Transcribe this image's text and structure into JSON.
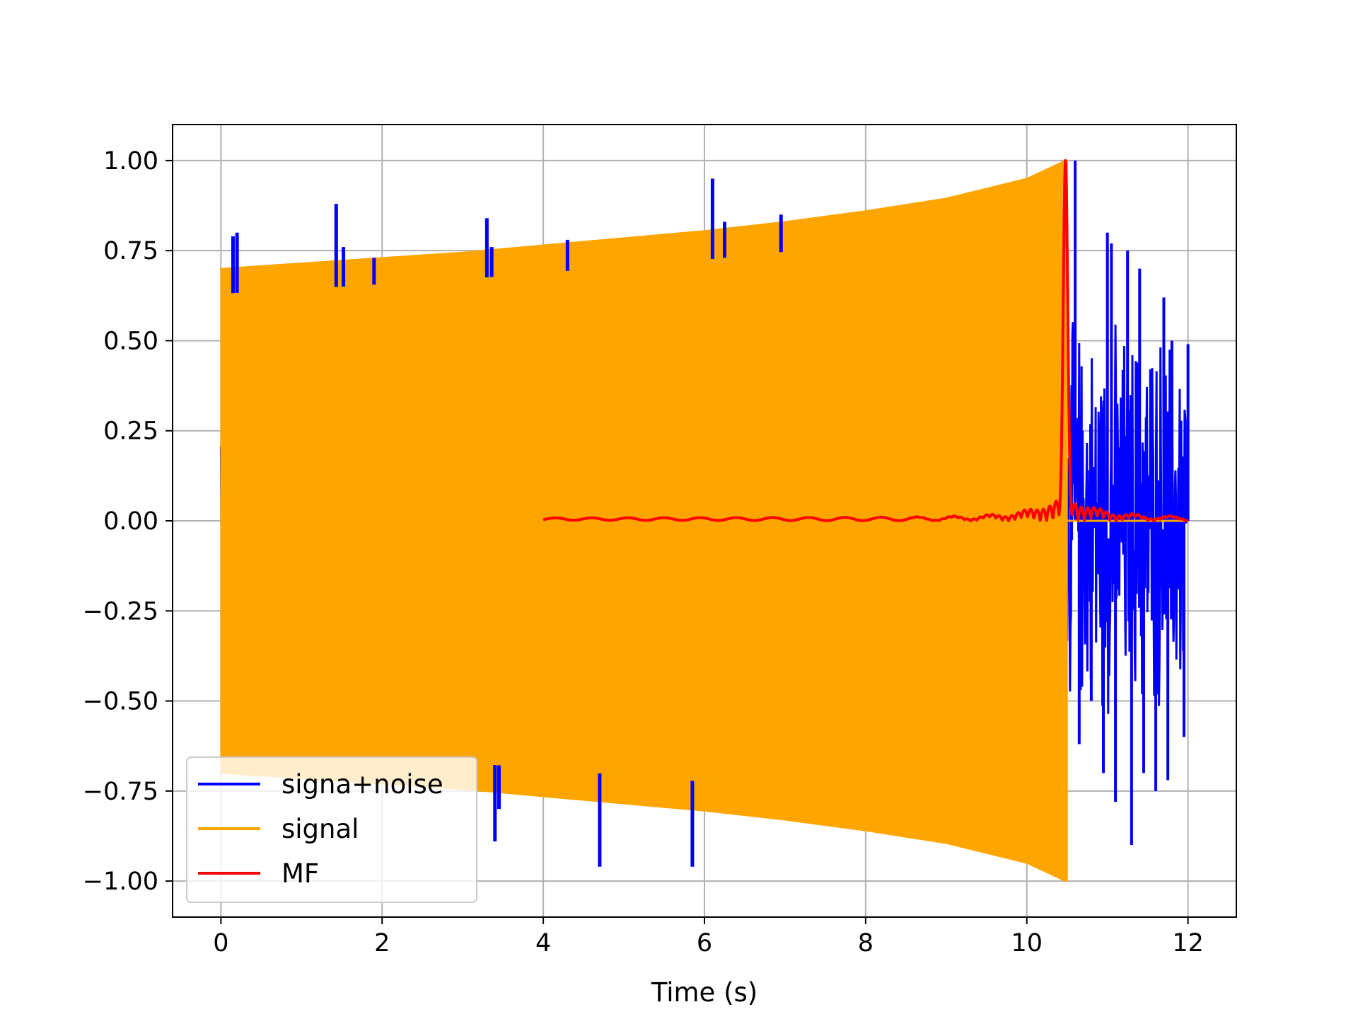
{
  "chart_data": {
    "type": "line",
    "title": "",
    "xlabel": "Time (s)",
    "ylabel": "",
    "xlim": [
      -0.6,
      12.6
    ],
    "ylim": [
      -1.1,
      1.1
    ],
    "x_ticks": [
      0,
      2,
      4,
      6,
      8,
      10,
      12
    ],
    "x_tick_labels": [
      "0",
      "2",
      "4",
      "6",
      "8",
      "10",
      "12"
    ],
    "y_ticks": [
      1.0,
      0.75,
      0.5,
      0.25,
      0.0,
      -0.25,
      -0.5,
      -0.75,
      -1.0
    ],
    "y_tick_labels": [
      "1.00",
      "0.75",
      "0.50",
      "0.25",
      "0.00",
      "−0.25",
      "−0.50",
      "−0.75",
      "−1.00"
    ],
    "grid": true,
    "legend_position": "lower-left",
    "legend": [
      "signa+noise",
      "signal",
      "MF"
    ],
    "series": [
      {
        "name": "signa+noise",
        "color": "#0000ff",
        "kind": "noisy-chirp",
        "x_range": [
          0,
          12
        ],
        "spikes": [
          {
            "x": 0.15,
            "y": 0.79
          },
          {
            "x": 0.2,
            "y": 0.8
          },
          {
            "x": 1.43,
            "y": 0.88
          },
          {
            "x": 1.52,
            "y": 0.76
          },
          {
            "x": 1.9,
            "y": 0.73
          },
          {
            "x": 3.3,
            "y": 0.84
          },
          {
            "x": 3.36,
            "y": 0.76
          },
          {
            "x": 3.4,
            "y": -0.89
          },
          {
            "x": 3.45,
            "y": -0.8
          },
          {
            "x": 4.3,
            "y": 0.78
          },
          {
            "x": 4.7,
            "y": -0.96
          },
          {
            "x": 5.85,
            "y": -0.96
          },
          {
            "x": 6.1,
            "y": 0.95
          },
          {
            "x": 6.25,
            "y": 0.83
          },
          {
            "x": 6.95,
            "y": 0.85
          }
        ],
        "tail_x_range": [
          10.5,
          12
        ],
        "tail_peaks": [
          {
            "x": 10.6,
            "y": 1.0
          },
          {
            "x": 10.65,
            "y": -0.62
          },
          {
            "x": 10.8,
            "y": -0.5
          },
          {
            "x": 10.95,
            "y": -0.7
          },
          {
            "x": 11.0,
            "y": 0.8
          },
          {
            "x": 11.05,
            "y": 0.77
          },
          {
            "x": 11.1,
            "y": -0.78
          },
          {
            "x": 11.25,
            "y": 0.75
          },
          {
            "x": 11.3,
            "y": -0.9
          },
          {
            "x": 11.4,
            "y": 0.7
          },
          {
            "x": 11.45,
            "y": -0.7
          },
          {
            "x": 11.6,
            "y": -0.75
          },
          {
            "x": 11.7,
            "y": 0.62
          },
          {
            "x": 11.75,
            "y": -0.72
          },
          {
            "x": 11.8,
            "y": 0.5
          },
          {
            "x": 11.95,
            "y": -0.6
          },
          {
            "x": 12.0,
            "y": 0.49
          }
        ]
      },
      {
        "name": "signal",
        "color": "#ffa500",
        "kind": "chirp-envelope",
        "x": [
          0,
          1,
          2,
          3,
          4,
          5,
          6,
          7,
          8,
          9,
          10,
          10.48,
          10.5
        ],
        "envelope": [
          0.7,
          0.715,
          0.73,
          0.745,
          0.765,
          0.785,
          0.805,
          0.83,
          0.86,
          0.895,
          0.95,
          1.0,
          0.0
        ]
      },
      {
        "name": "MF",
        "color": "#ff0000",
        "kind": "matched-filter",
        "x_range": [
          4,
          12
        ],
        "peak": {
          "x": 10.48,
          "y": 1.0
        },
        "baseline": 0.005
      }
    ]
  }
}
